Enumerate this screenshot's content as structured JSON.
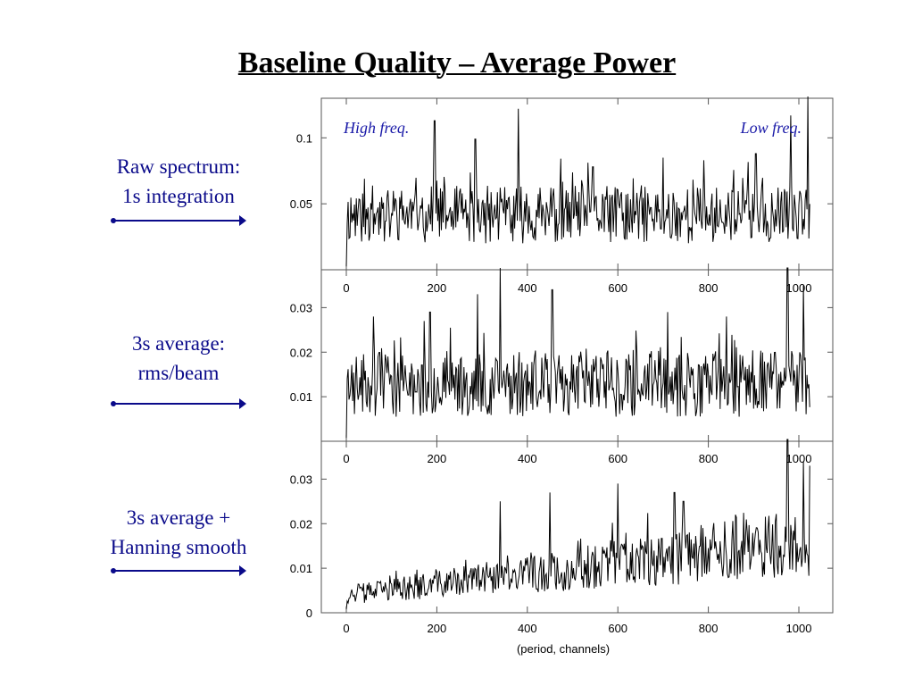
{
  "slide": {
    "title": "Baseline Quality – Average Power",
    "accent_color": "#0a0a8a",
    "arrow_color": "#0a0a8a"
  },
  "labels": [
    {
      "lines": [
        "Raw spectrum:",
        "1s integration"
      ]
    },
    {
      "lines": [
        "3s average:",
        "rms/beam"
      ]
    },
    {
      "lines": [
        "3s average +",
        "Hanning smooth"
      ]
    }
  ],
  "chart_data": [
    {
      "type": "line",
      "x_range": [
        0,
        1024
      ],
      "ylim": [
        0,
        0.13
      ],
      "y_ticks": [
        "0.05",
        "0.1"
      ],
      "y_tick_values": [
        0.05,
        0.1
      ],
      "x_ticks": [
        "0",
        "200",
        "400",
        "600",
        "800",
        "1000"
      ],
      "x_tick_values": [
        0,
        200,
        400,
        600,
        800,
        1000
      ],
      "annotations": {
        "left": "High freq.",
        "right": "Low freq."
      },
      "annotation_color": "#1a1aa8",
      "series": [
        {
          "trend": "flat",
          "baseline": 0.042,
          "noise_amplitude": 0.022,
          "seed": 11,
          "peaks": [
            [
              195,
              0.113
            ],
            [
              380,
              0.122
            ],
            [
              285,
              0.099
            ],
            [
              982,
              0.117
            ],
            [
              1020,
              0.148
            ],
            [
              700,
              0.085
            ],
            [
              545,
              0.078
            ],
            [
              790,
              0.083
            ],
            [
              905,
              0.088
            ]
          ]
        }
      ]
    },
    {
      "type": "line",
      "x_range": [
        0,
        1024
      ],
      "ylim": [
        0,
        0.0385
      ],
      "y_ticks": [
        "0.01",
        "0.02",
        "0.03"
      ],
      "y_tick_values": [
        0.01,
        0.02,
        0.03
      ],
      "x_ticks": [
        "0",
        "200",
        "400",
        "600",
        "800",
        "1000"
      ],
      "x_tick_values": [
        0,
        200,
        400,
        600,
        800,
        1000
      ],
      "series": [
        {
          "trend": "flat",
          "baseline": 0.013,
          "noise_amplitude": 0.0075,
          "seed": 23,
          "peaks": [
            [
              340,
              0.041
            ],
            [
              455,
              0.034
            ],
            [
              290,
              0.033
            ],
            [
              185,
              0.029
            ],
            [
              710,
              0.029
            ],
            [
              975,
              0.04
            ],
            [
              1010,
              0.035
            ],
            [
              60,
              0.028
            ],
            [
              840,
              0.028
            ]
          ]
        }
      ]
    },
    {
      "type": "line",
      "x_range": [
        0,
        1024
      ],
      "ylim": [
        0,
        0.0385
      ],
      "y_ticks": [
        "0",
        "0.01",
        "0.02",
        "0.03"
      ],
      "y_tick_values": [
        0,
        0.01,
        0.02,
        0.03
      ],
      "x_ticks": [
        "0",
        "200",
        "400",
        "600",
        "800",
        "1000"
      ],
      "x_tick_values": [
        0,
        200,
        400,
        600,
        800,
        1000
      ],
      "xlabel": "(period, channels)",
      "series": [
        {
          "trend": "rising",
          "baseline_start": 0.004,
          "baseline_end": 0.016,
          "noise_amplitude_start": 0.002,
          "noise_amplitude_end": 0.008,
          "seed": 37,
          "peaks": [
            [
              340,
              0.025
            ],
            [
              450,
              0.027
            ],
            [
              600,
              0.029
            ],
            [
              725,
              0.027
            ],
            [
              745,
              0.025
            ],
            [
              975,
              0.041
            ],
            [
              1010,
              0.034
            ],
            [
              1025,
              0.033
            ],
            [
              860,
              0.022
            ]
          ]
        }
      ]
    }
  ]
}
